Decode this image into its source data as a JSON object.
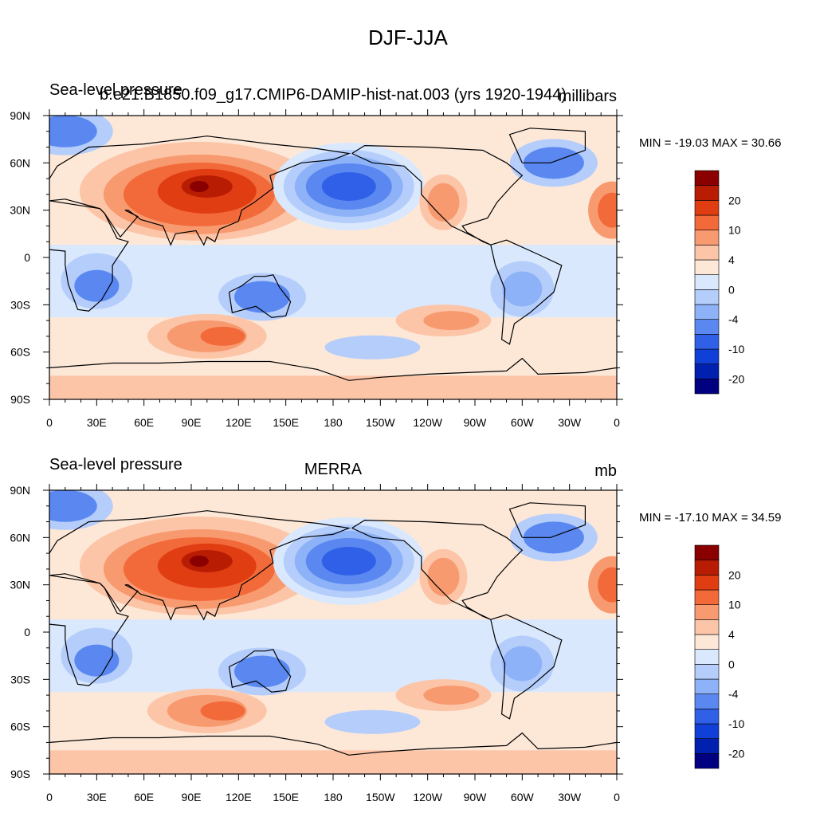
{
  "figure": {
    "title": "DJF-JJA"
  },
  "colors": [
    "#000080",
    "#0020b0",
    "#1040d8",
    "#3060e8",
    "#5a88f0",
    "#8db2f8",
    "#b5cdfb",
    "#d9e8fd",
    "#fde8d8",
    "#fcc5a8",
    "#f89a70",
    "#f26a3a",
    "#e03d12",
    "#b81d04",
    "#8a0000"
  ],
  "axes": {
    "lat_ticks": [
      "90N",
      "60N",
      "30N",
      "0",
      "30S",
      "60S",
      "90S"
    ],
    "lon_ticks": [
      "0",
      "30E",
      "60E",
      "90E",
      "120E",
      "150E",
      "180",
      "150W",
      "120W",
      "90W",
      "60W",
      "30W",
      "0"
    ]
  },
  "colorbar": {
    "levels": [
      -30,
      -20,
      -15,
      -10,
      -6,
      -4,
      -2,
      0,
      2,
      4,
      6,
      10,
      15,
      20,
      30
    ],
    "labels": [
      "20",
      "10",
      "4",
      "0",
      "-4",
      "-10",
      "-20"
    ]
  },
  "panels": [
    {
      "title_left": "Sea-level pressure",
      "title_center": "b.e21.B1850.f09_g17.CMIP6-DAMIP-hist-nat.003 (yrs 1920-1944)",
      "title_right": "millibars",
      "minmax": "MIN = -19.03 MAX =  30.66"
    },
    {
      "title_left": "Sea-level pressure",
      "title_center": "MERRA",
      "title_right": "mb",
      "minmax": "MIN = -17.10 MAX =  34.59"
    }
  ]
}
